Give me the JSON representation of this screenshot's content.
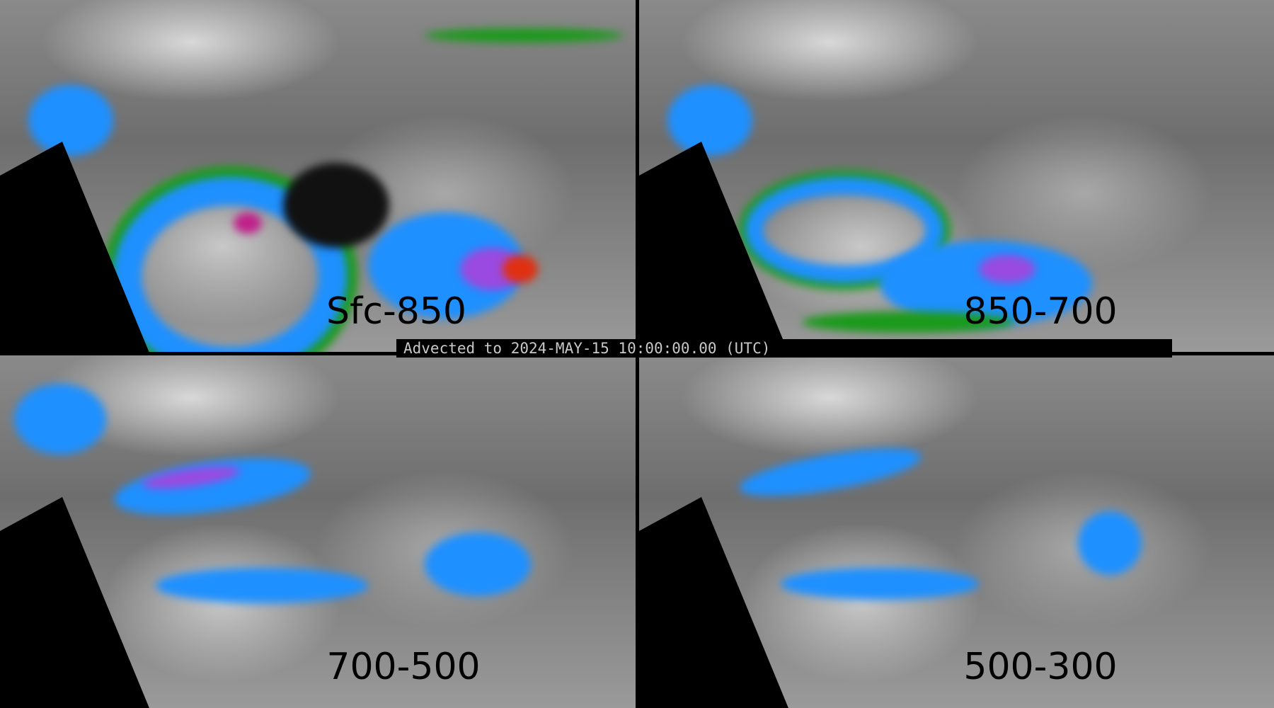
{
  "panels": [
    {
      "label": "Sfc-850"
    },
    {
      "label": "850-700"
    },
    {
      "label": "700-500"
    },
    {
      "label": "500-300"
    }
  ],
  "timestamp": "Advected to 2024-MAY-15 10:00:00.00 (UTC)",
  "colors": {
    "background": "#000000",
    "low": "#808080",
    "green": "#1a9a1a",
    "blue": "#1e90ff",
    "cyan": "#00c8ff",
    "purple": "#9a4ae0",
    "red": "#e03010"
  }
}
